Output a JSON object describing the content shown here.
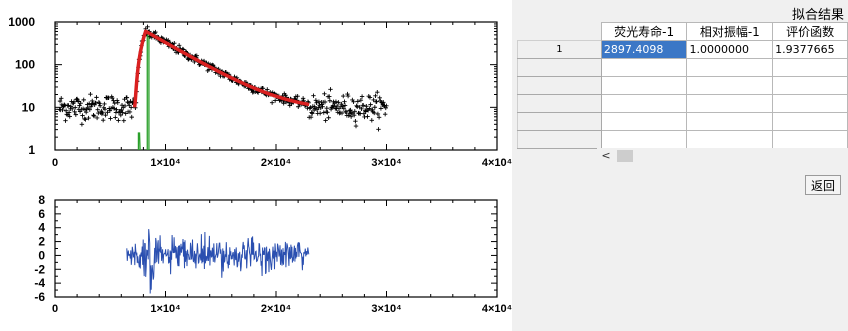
{
  "window": {
    "results_title": "拟合结果"
  },
  "table": {
    "headers": [
      "荧光寿命-1",
      "相对振幅-1",
      "评价函数"
    ],
    "rows": [
      {
        "label": "1",
        "values": [
          "2897.4098",
          "1.0000000",
          "1.9377665"
        ]
      },
      {
        "label": "",
        "values": [
          "",
          "",
          ""
        ]
      },
      {
        "label": "",
        "values": [
          "",
          "",
          ""
        ]
      },
      {
        "label": "",
        "values": [
          "",
          "",
          ""
        ]
      },
      {
        "label": "",
        "values": [
          "",
          "",
          ""
        ]
      },
      {
        "label": "",
        "values": [
          "",
          "",
          ""
        ]
      }
    ],
    "selected_cell": "row-1-col-1"
  },
  "scrollbar": {
    "left_arrow": "<"
  },
  "buttons": {
    "back_label": "返回"
  },
  "chart_data": [
    {
      "type": "scatter",
      "description_series": [
        "decay data (black +)",
        "fit (red)",
        "instrument response (green)"
      ],
      "y_scale": "log",
      "xlim": [
        0,
        40000
      ],
      "ylim": [
        1,
        1000
      ],
      "x_tick_labels": [
        "0",
        "1×10⁴",
        "2×10⁴",
        "3×10⁴",
        "4×10⁴"
      ],
      "y_tick_labels": [
        "1",
        "10",
        "100",
        "1000"
      ],
      "colors": {
        "data": "#000000",
        "fit": "#d92020",
        "irf": "#2aa02a"
      },
      "fit": {
        "peak_x": 8200,
        "peak_y": 600,
        "end_x": 23000,
        "lifetime": 2897.4098
      },
      "data_range": {
        "x_start": 0,
        "x_end": 30000,
        "background": 10
      }
    },
    {
      "type": "line",
      "xlim": [
        0,
        40000
      ],
      "ylim": [
        -6,
        8
      ],
      "x_tick_labels": [
        "0",
        "1×10⁴",
        "2×10⁴",
        "3×10⁴",
        "4×10⁴"
      ],
      "y_tick_labels": [
        "8",
        "6",
        "4",
        "2",
        "0",
        "-2",
        "-4",
        "-6"
      ],
      "color": "#2a4fb0",
      "x_range": [
        6500,
        23000
      ]
    }
  ]
}
